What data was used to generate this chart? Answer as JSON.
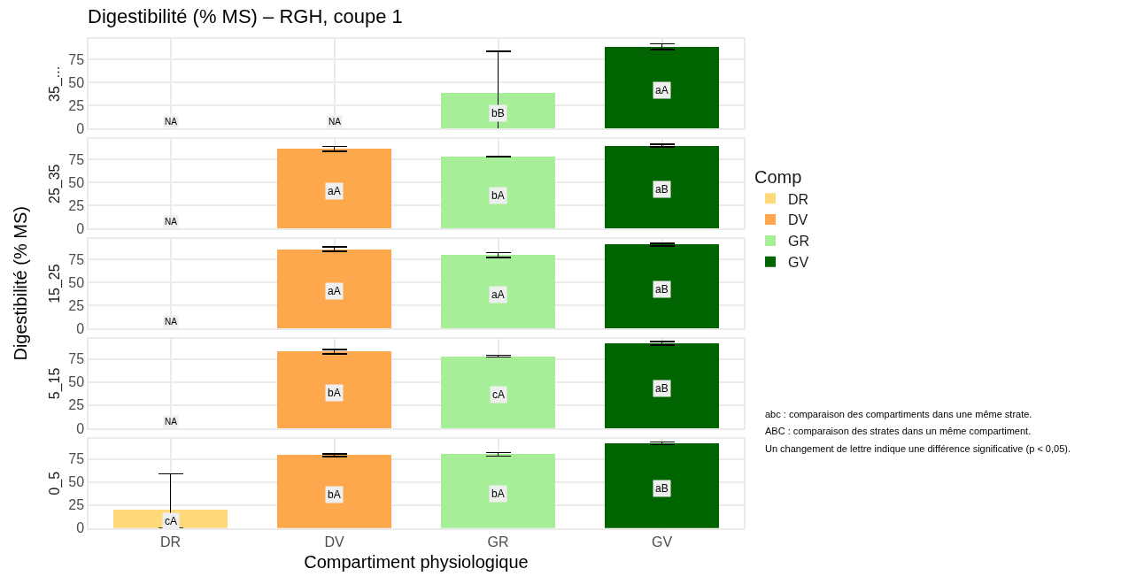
{
  "chart_data": [
    {
      "type": "bar",
      "title": "Digestibilité (% MS) – RGH, coupe 1",
      "ylabel": "35_...",
      "legend": "right",
      "legend_title": "Comp",
      "grid": true,
      "tick_labels": "y",
      "stacked": true,
      "categories": [
        "DR",
        "DV",
        "GR",
        "GV"
      ],
      "series": [
        {
          "name": "DR",
          "color": "#fdd97c",
          "values": [
            null,
            null,
            null,
            null
          ],
          "value_labels": [
            "NA",
            null,
            null,
            null
          ]
        },
        {
          "name": "DV",
          "color": "#fda84d",
          "values": [
            null,
            null,
            null,
            null
          ],
          "value_labels": [
            null,
            "NA",
            null,
            null
          ]
        },
        {
          "name": "GR",
          "color": "#a6ef98",
          "values": [
            null,
            null,
            39,
            null
          ],
          "errors": [
            null,
            null,
            [
              0,
              84
            ],
            null
          ]
        },
        {
          "name": "GV",
          "color": "#006400",
          "values": [
            null,
            null,
            null,
            89
          ],
          "errors": [
            null,
            null,
            null,
            3
          ]
        }
      ],
      "ylim": [
        0,
        97
      ],
      "yticks": [
        0,
        25,
        50,
        75
      ],
      "annotations": [
        "bB",
        "aA"
      ]
    },
    {
      "type": "bar",
      "ylabel": "25_35",
      "grid": true,
      "tick_labels": "y",
      "stacked": true,
      "categories": [
        "DR",
        "DV",
        "GR",
        "GV"
      ],
      "series": [
        {
          "color": "#fdd97c",
          "values": [
            null,
            null,
            null,
            null
          ],
          "value_labels": [
            "NA",
            null,
            null,
            null
          ]
        },
        {
          "color": "#fda84d",
          "values": [
            null,
            86.5,
            null,
            null
          ],
          "errors": [
            null,
            2.5,
            null,
            null
          ]
        },
        {
          "color": "#a6ef98",
          "values": [
            null,
            null,
            78,
            null
          ],
          "errors": [
            null,
            null,
            0.5,
            null
          ]
        },
        {
          "color": "#006400",
          "values": [
            null,
            null,
            null,
            90
          ],
          "errors": [
            null,
            null,
            null,
            1.5
          ]
        }
      ],
      "ylim": [
        0,
        97
      ],
      "yticks": [
        0,
        25,
        50,
        75
      ],
      "annotations": [
        "aA",
        "bA",
        "aB"
      ]
    },
    {
      "type": "bar",
      "ylabel": "15_25",
      "grid": true,
      "tick_labels": "y",
      "stacked": true,
      "categories": [
        "DR",
        "DV",
        "GR",
        "GV"
      ],
      "series": [
        {
          "color": "#fdd97c",
          "values": [
            null,
            null,
            null,
            null
          ],
          "value_labels": [
            "NA",
            null,
            null,
            null
          ]
        },
        {
          "color": "#fda84d",
          "values": [
            null,
            86,
            null,
            null
          ],
          "errors": [
            null,
            2.5,
            null,
            null
          ]
        },
        {
          "color": "#a6ef98",
          "values": [
            null,
            null,
            79.5,
            null
          ],
          "errors": [
            null,
            null,
            2.5,
            null
          ]
        },
        {
          "color": "#006400",
          "values": [
            null,
            null,
            null,
            91
          ],
          "errors": [
            null,
            null,
            null,
            1.5
          ]
        }
      ],
      "ylim": [
        0,
        97
      ],
      "yticks": [
        0,
        25,
        50,
        75
      ],
      "annotations": [
        "aA",
        "aA",
        "aB",
        "Digestibilité (% MS)"
      ]
    },
    {
      "type": "bar",
      "ylabel": "5_15",
      "grid": true,
      "tick_labels": "y",
      "stacked": true,
      "categories": [
        "DR",
        "DV",
        "GR",
        "GV"
      ],
      "series": [
        {
          "color": "#fdd97c",
          "values": [
            null,
            null,
            null,
            null
          ],
          "value_labels": [
            "NA",
            null,
            null,
            null
          ]
        },
        {
          "color": "#fda84d",
          "values": [
            null,
            83,
            null,
            null
          ],
          "errors": [
            null,
            2.5,
            null,
            null
          ]
        },
        {
          "color": "#a6ef98",
          "values": [
            null,
            null,
            78,
            null
          ],
          "errors": [
            null,
            null,
            1,
            null
          ]
        },
        {
          "color": "#006400",
          "values": [
            null,
            null,
            null,
            92
          ],
          "errors": [
            null,
            null,
            null,
            2
          ]
        }
      ],
      "ylim": [
        0,
        97
      ],
      "yticks": [
        0,
        25,
        50,
        75
      ],
      "annotations": [
        "bA",
        "cA",
        "aB"
      ]
    },
    {
      "type": "bar",
      "ylabel": "0_5",
      "xlabel": "Compartiment physiologique",
      "grid": true,
      "stacked": true,
      "categories": [
        "DR",
        "DV",
        "GR",
        "GV"
      ],
      "series": [
        {
          "color": "#fdd97c",
          "values": [
            20,
            null,
            null,
            null
          ],
          "errors": [
            [
              0,
              59
            ],
            null,
            null,
            null
          ]
        },
        {
          "color": "#fda84d",
          "values": [
            null,
            79,
            null,
            null
          ],
          "errors": [
            null,
            1.5,
            null,
            null
          ]
        },
        {
          "color": "#a6ef98",
          "values": [
            null,
            null,
            80,
            null
          ],
          "errors": [
            null,
            null,
            2,
            null
          ]
        },
        {
          "color": "#006400",
          "values": [
            null,
            null,
            null,
            92
          ],
          "errors": [
            null,
            null,
            null,
            1.5
          ]
        }
      ],
      "ylim": [
        0,
        97
      ],
      "yticks": [
        0,
        25,
        50,
        75
      ],
      "annotations": [
        "cA",
        "bA",
        "bA",
        "aB",
        "abc : comparaison des compartiments dans une même strate.",
        "ABC : comparaison des strates dans un même compartiment.",
        "Un changement de lettre indique une différence significative (p < 0,05)."
      ]
    }
  ]
}
